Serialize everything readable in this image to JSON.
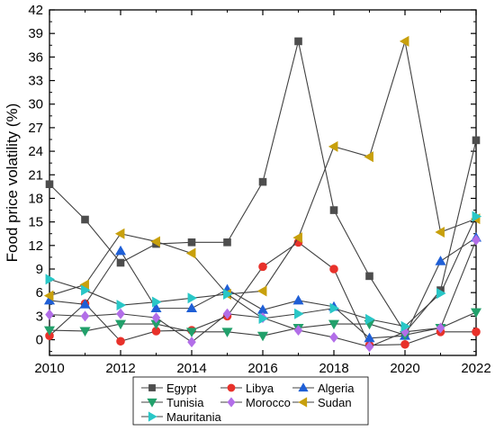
{
  "chart_data": {
    "type": "line",
    "title": "",
    "xlabel": "",
    "ylabel": "Food price volatility (%)",
    "xlim": [
      2010,
      2022
    ],
    "ylim": [
      -2,
      42
    ],
    "xticks": [
      2010,
      2012,
      2014,
      2016,
      2018,
      2020,
      2022
    ],
    "yticks": [
      0,
      3,
      6,
      9,
      12,
      15,
      18,
      21,
      24,
      27,
      30,
      33,
      36,
      39,
      42
    ],
    "grid": false,
    "legend_position": "bottom",
    "x": [
      2010,
      2011,
      2012,
      2013,
      2014,
      2015,
      2016,
      2017,
      2018,
      2019,
      2020,
      2021,
      2022
    ],
    "series": [
      {
        "name": "Egypt",
        "marker": "square",
        "color": "#4d4d4d",
        "values": [
          19.8,
          15.3,
          9.8,
          12.2,
          12.4,
          12.4,
          20.1,
          38.0,
          16.5,
          8.1,
          0.9,
          6.3,
          25.4
        ]
      },
      {
        "name": "Libya",
        "marker": "circle",
        "color": "#e8312a",
        "values": [
          0.5,
          4.6,
          -0.2,
          1.1,
          1.2,
          3.0,
          9.3,
          12.4,
          9.0,
          -0.7,
          -0.6,
          1.0,
          1.0
        ]
      },
      {
        "name": "Algeria",
        "marker": "triangle-up",
        "color": "#1f5fd6",
        "values": [
          5.0,
          4.5,
          11.3,
          4.0,
          4.0,
          6.4,
          3.8,
          5.0,
          4.2,
          0.2,
          0.5,
          10.0,
          13.0
        ]
      },
      {
        "name": "Tunisia",
        "marker": "triangle-down",
        "color": "#22a06b",
        "values": [
          1.2,
          1.1,
          2.0,
          2.0,
          1.0,
          1.0,
          0.5,
          1.5,
          2.0,
          2.0,
          0.6,
          1.5,
          3.5
        ]
      },
      {
        "name": "Morocco",
        "marker": "diamond",
        "color": "#b26ee8",
        "values": [
          3.2,
          3.0,
          3.3,
          2.8,
          -0.3,
          3.3,
          2.8,
          1.2,
          0.3,
          -0.9,
          1.0,
          1.5,
          12.7
        ]
      },
      {
        "name": "Sudan",
        "marker": "triangle-left",
        "color": "#c8a00c",
        "values": [
          5.6,
          7.0,
          13.5,
          12.5,
          11.0,
          5.8,
          6.2,
          13.0,
          24.6,
          23.3,
          38.0,
          13.7,
          15.4
        ]
      },
      {
        "name": "Mauritania",
        "marker": "triangle-right",
        "color": "#29c7c7",
        "values": [
          7.7,
          6.3,
          4.4,
          4.8,
          5.3,
          5.8,
          2.7,
          3.3,
          4.0,
          2.6,
          1.7,
          5.9,
          15.7
        ]
      }
    ]
  }
}
